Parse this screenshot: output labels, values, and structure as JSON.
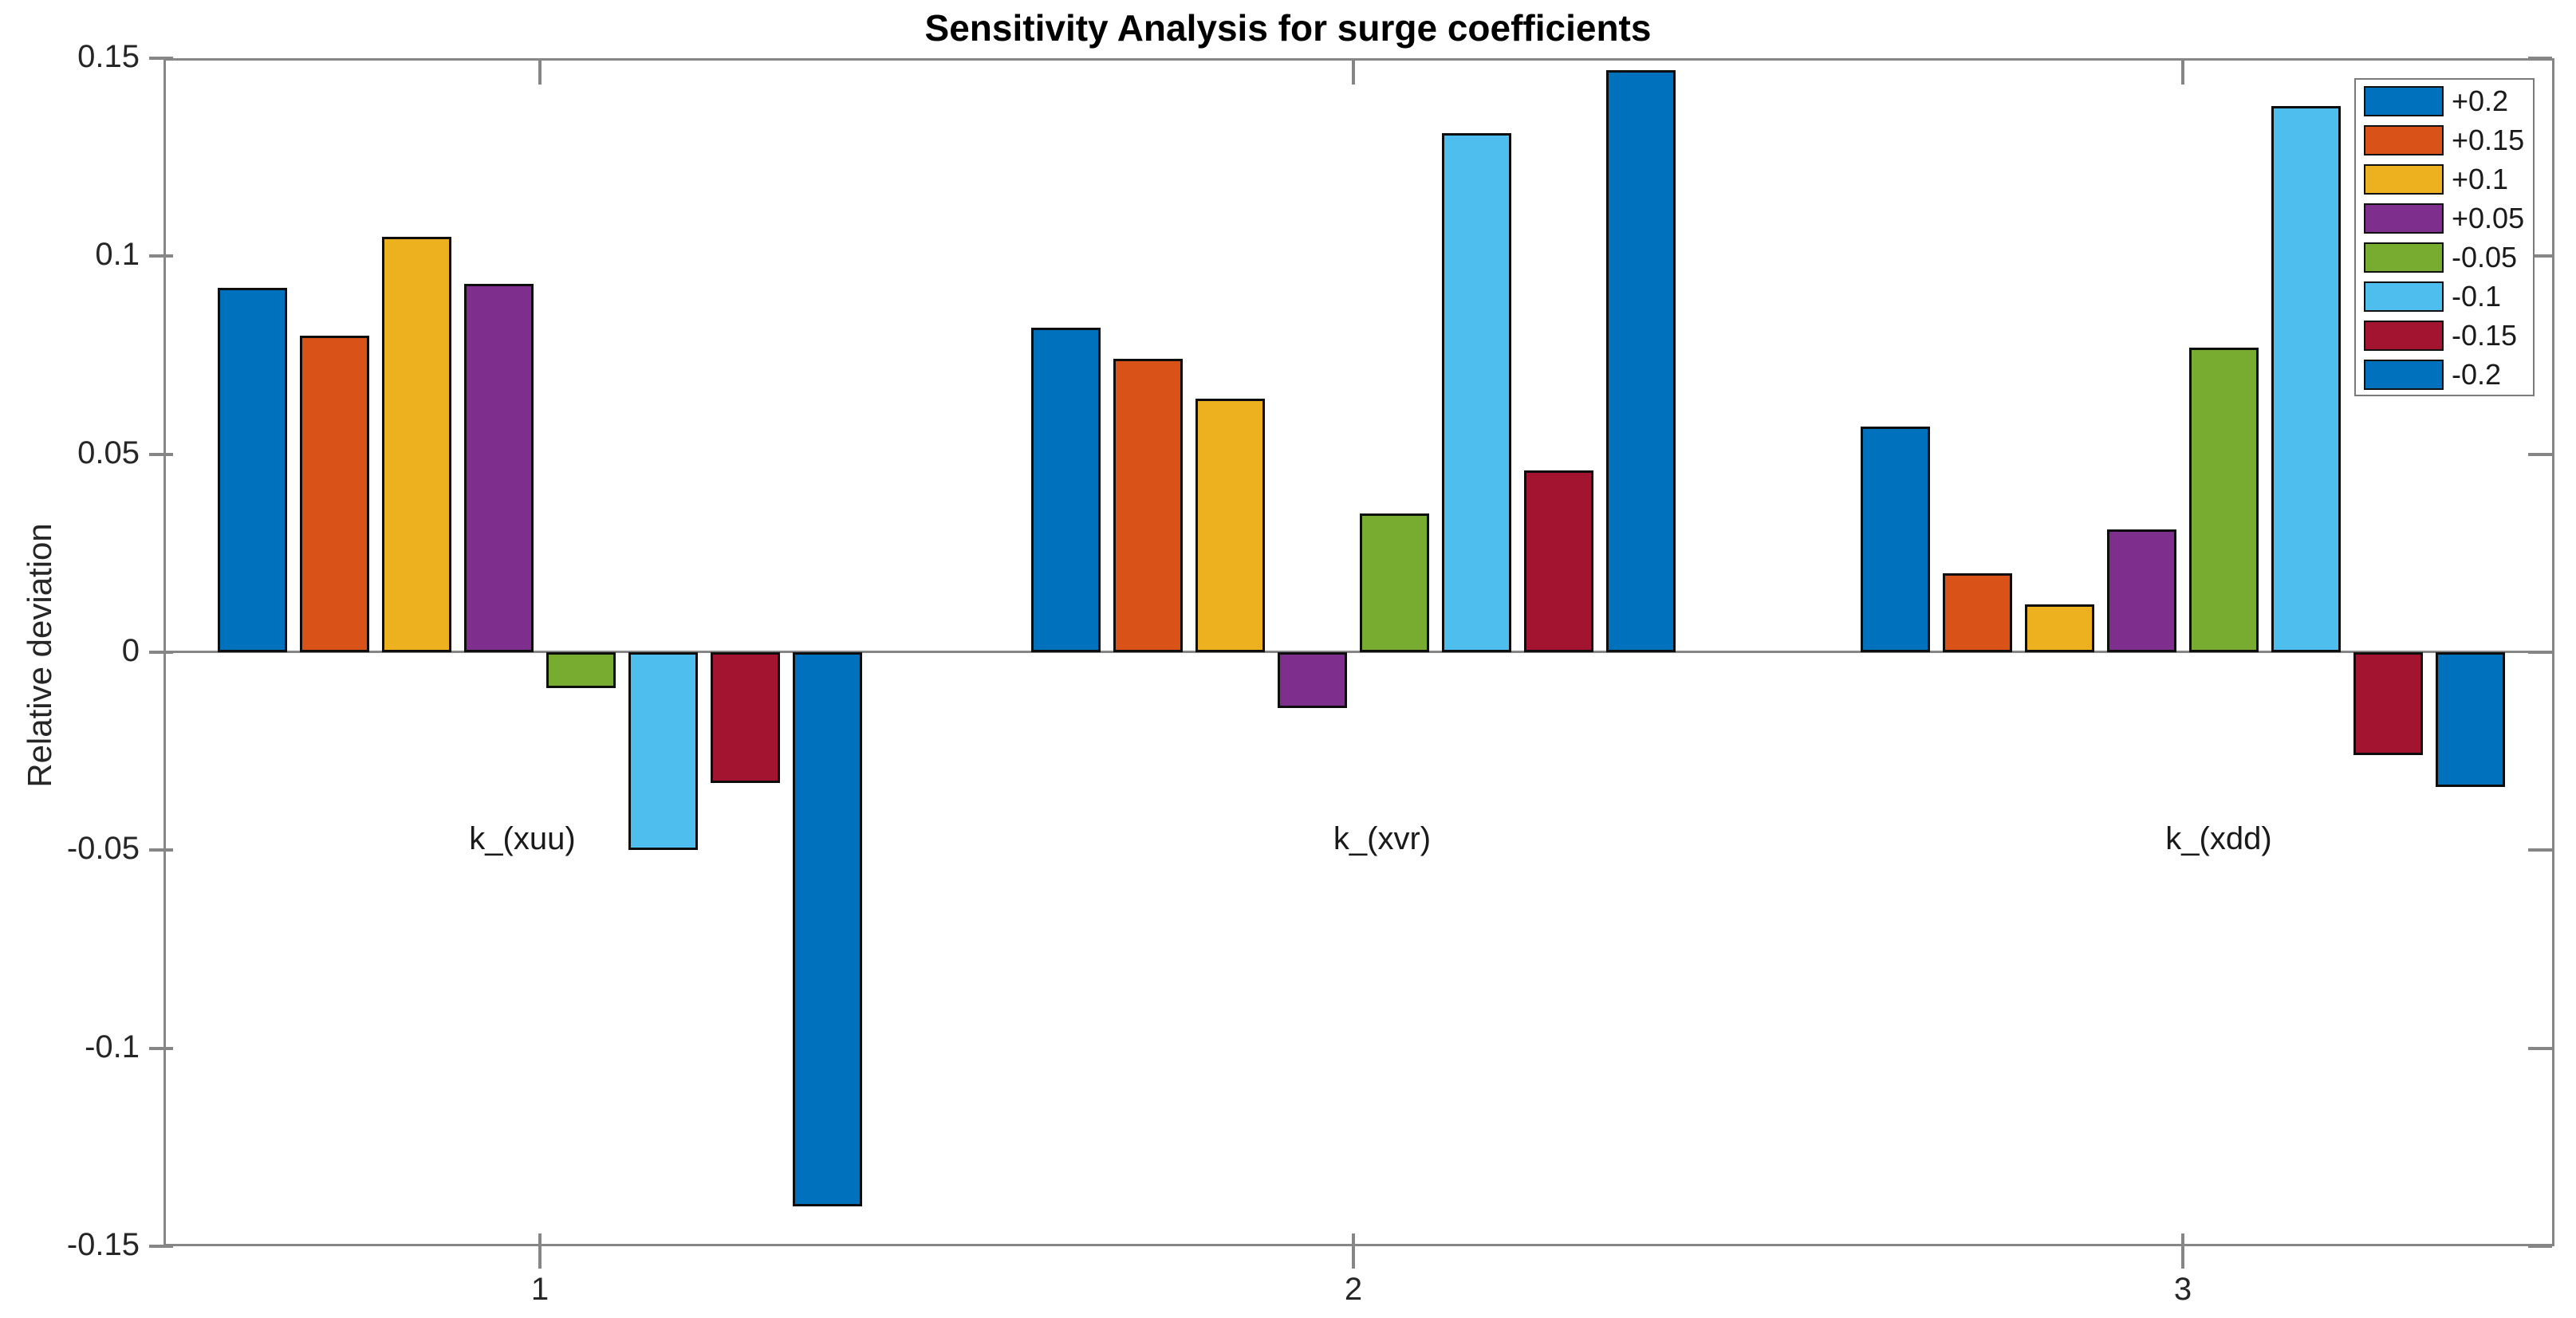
{
  "figure": {
    "title": "Sensitivity Analysis for surge coefficients",
    "ylabel": "Relative deviation"
  },
  "axes": {
    "y_tick_labels": [
      "0.15",
      "0.1",
      "0.05",
      "0",
      "-0.05",
      "-0.1",
      "-0.15"
    ],
    "y_tick_values": [
      0.15,
      0.1,
      0.05,
      0,
      -0.05,
      -0.1,
      -0.15
    ],
    "x_tick_labels": [
      "1",
      "2",
      "3"
    ]
  },
  "chart_data": {
    "type": "bar",
    "title": "Sensitivity Analysis for surge coefficients",
    "xlabel": "",
    "ylabel": "Relative deviation",
    "categories": [
      "1",
      "2",
      "3"
    ],
    "group_labels": [
      "k_(xuu)",
      "k_(xvr)",
      "k_(xdd)"
    ],
    "series": [
      {
        "name": "+0.2",
        "color": "#0072BD",
        "values": [
          0.092,
          0.082,
          0.057
        ]
      },
      {
        "name": "+0.15",
        "color": "#D95319",
        "values": [
          0.08,
          0.074,
          0.02
        ]
      },
      {
        "name": "+0.1",
        "color": "#EDB120",
        "values": [
          0.105,
          0.064,
          0.012
        ]
      },
      {
        "name": "+0.05",
        "color": "#7E2F8E",
        "values": [
          0.093,
          -0.014,
          0.031
        ]
      },
      {
        "name": "-0.05",
        "color": "#77AC30",
        "values": [
          -0.009,
          0.035,
          0.077
        ]
      },
      {
        "name": "-0.1",
        "color": "#4DBEEE",
        "values": [
          -0.05,
          0.131,
          0.138
        ]
      },
      {
        "name": "-0.15",
        "color": "#A2142F",
        "values": [
          -0.033,
          0.046,
          -0.026
        ]
      },
      {
        "name": "-0.2",
        "color": "#0072BD",
        "values": [
          -0.14,
          0.147,
          -0.034
        ]
      }
    ],
    "ylim": [
      -0.15,
      0.15
    ],
    "grid": false,
    "legend_position": "northeast"
  }
}
